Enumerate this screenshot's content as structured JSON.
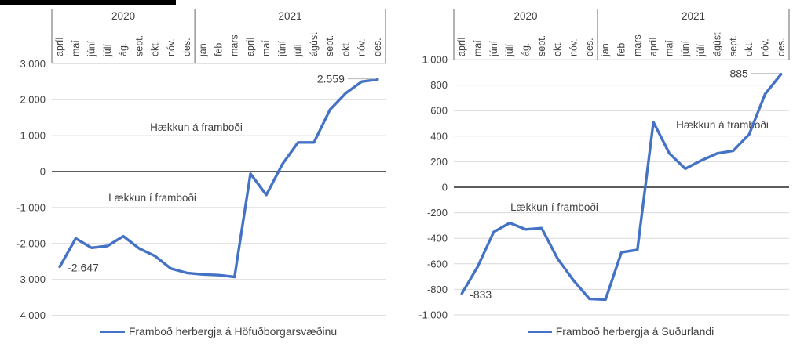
{
  "page": {
    "background_color": "#ffffff"
  },
  "colors": {
    "line": "#4472C4",
    "gridline": "#D9D9D9",
    "zero_line": "#444444",
    "axis_line": "#7f7f7f",
    "text": "#404040",
    "leader_line": "#BFBFBF",
    "top_bar": "#000000"
  },
  "chart_data": [
    {
      "type": "line",
      "legend": "Framboð herbergja á Höfuðborgarsvæðinu",
      "line_color": "#4472C4",
      "grid": true,
      "legend_position": "bottom",
      "x_groups": [
        {
          "year": "2020",
          "months": [
            "apríl",
            "maí",
            "júní",
            "júlí",
            "ág.",
            "sept.",
            "okt.",
            "nóv.",
            "des."
          ]
        },
        {
          "year": "2021",
          "months": [
            "jan",
            "feb",
            "mars",
            "apríl",
            "maí",
            "júní",
            "júlí",
            "ágúst",
            "sept.",
            "okt.",
            "nóv.",
            "des."
          ]
        }
      ],
      "categories": [
        "apríl 2020",
        "maí 2020",
        "júní 2020",
        "júlí 2020",
        "ág. 2020",
        "sept. 2020",
        "okt. 2020",
        "nóv. 2020",
        "des. 2020",
        "jan 2021",
        "feb 2021",
        "mars 2021",
        "apríl 2021",
        "maí 2021",
        "júní 2021",
        "júlí 2021",
        "ágúst 2021",
        "sept. 2021",
        "okt. 2021",
        "nóv. 2021",
        "des. 2021"
      ],
      "values": [
        -2647,
        -1860,
        -2120,
        -2070,
        -1800,
        -2140,
        -2350,
        -2700,
        -2820,
        -2860,
        -2880,
        -2930,
        -60,
        -650,
        200,
        810,
        810,
        1720,
        2180,
        2500,
        2559
      ],
      "ylim": [
        -4000,
        3000
      ],
      "y_tick_step": 1000,
      "y_tick_labels": [
        "3.000",
        "2.000",
        "1.000",
        "0",
        "-1.000",
        "-2.000",
        "-3.000",
        "-4.000"
      ],
      "annotations": [
        {
          "text": "-2.647",
          "index": 0,
          "side": "start"
        },
        {
          "text": "2.559",
          "index": 20,
          "side": "end"
        }
      ],
      "region_labels": [
        "Hækkun á framboði",
        "Lækkun í framboði"
      ]
    },
    {
      "type": "line",
      "legend": "Framboð herbergja á Suðurlandi",
      "line_color": "#4472C4",
      "grid": true,
      "legend_position": "bottom",
      "x_groups": [
        {
          "year": "2020",
          "months": [
            "apríl",
            "maí",
            "júní",
            "júlí",
            "ág.",
            "sept.",
            "okt.",
            "nóv.",
            "des."
          ]
        },
        {
          "year": "2021",
          "months": [
            "jan",
            "feb",
            "mars",
            "apríl",
            "maí",
            "júní",
            "júlí",
            "ágúst",
            "sept.",
            "okt.",
            "nóv.",
            "des."
          ]
        }
      ],
      "categories": [
        "apríl 2020",
        "maí 2020",
        "júní 2020",
        "júlí 2020",
        "ág. 2020",
        "sept. 2020",
        "okt. 2020",
        "nóv. 2020",
        "des. 2020",
        "jan 2021",
        "feb 2021",
        "mars 2021",
        "apríl 2021",
        "maí 2021",
        "júní 2021",
        "júlí 2021",
        "ágúst 2021",
        "sept. 2021",
        "okt. 2021",
        "nóv. 2021",
        "des. 2021"
      ],
      "values": [
        -833,
        -620,
        -350,
        -280,
        -330,
        -320,
        -560,
        -730,
        -875,
        -880,
        -510,
        -490,
        510,
        265,
        145,
        210,
        265,
        285,
        415,
        730,
        885
      ],
      "ylim": [
        -1000,
        1000
      ],
      "y_tick_step": 200,
      "y_tick_labels": [
        "1.000",
        "800",
        "600",
        "400",
        "200",
        "0",
        "-200",
        "-400",
        "-600",
        "-800",
        "-1.000"
      ],
      "annotations": [
        {
          "text": "-833",
          "index": 0,
          "side": "start"
        },
        {
          "text": "885",
          "index": 20,
          "side": "end"
        }
      ],
      "region_labels": [
        "Hækkun á framboði",
        "Lækkun í framboði"
      ]
    }
  ]
}
